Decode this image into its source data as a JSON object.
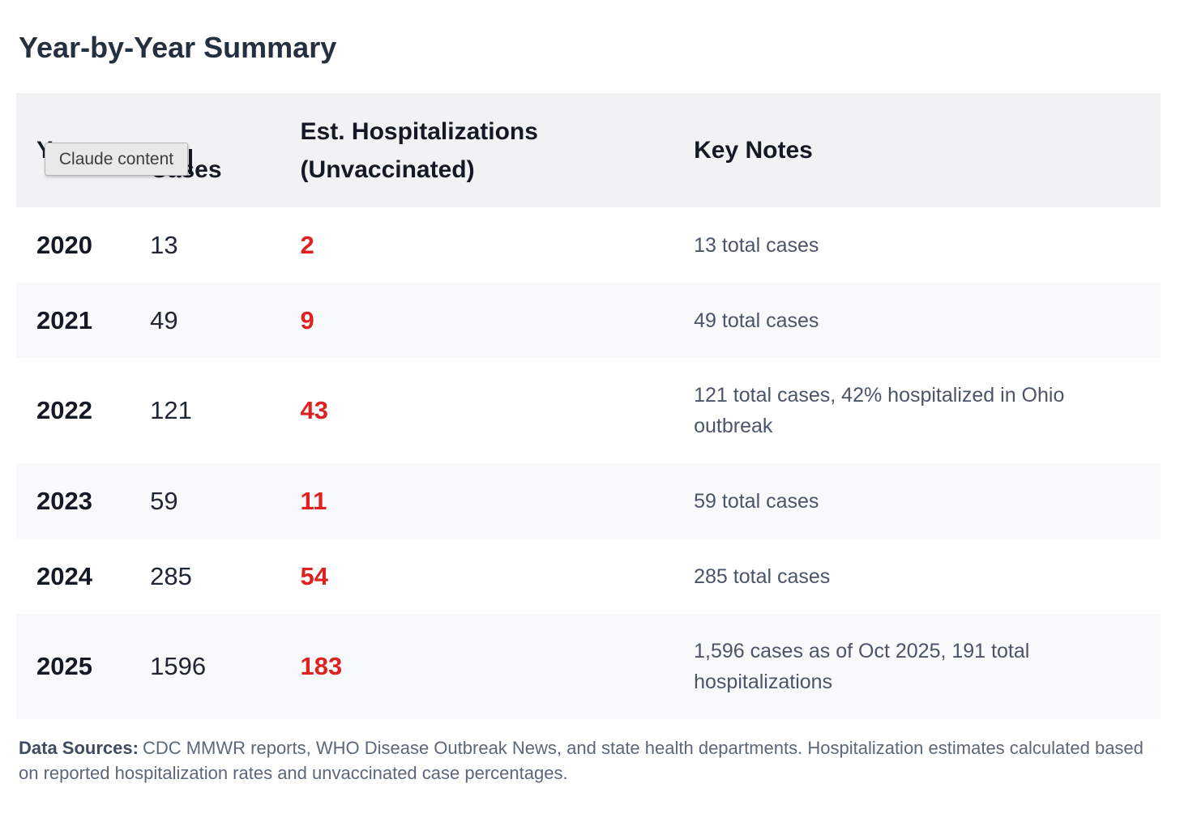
{
  "page": {
    "title": "Year-by-Year Summary"
  },
  "tooltip": {
    "text": "Claude content"
  },
  "table": {
    "headers": {
      "year": "Year",
      "cases_line2": "Cases",
      "hosp_line1": "Est. Hospitalizations",
      "hosp_line2": "(Unvaccinated)",
      "notes": "Key Notes"
    },
    "rows": [
      {
        "year": "2020",
        "cases": "13",
        "hospitalizations": "2",
        "notes": "13 total cases"
      },
      {
        "year": "2021",
        "cases": "49",
        "hospitalizations": "9",
        "notes": "49 total cases"
      },
      {
        "year": "2022",
        "cases": "121",
        "hospitalizations": "43",
        "notes": "121 total cases, 42% hospitalized in Ohio outbreak"
      },
      {
        "year": "2023",
        "cases": "59",
        "hospitalizations": "11",
        "notes": "59 total cases"
      },
      {
        "year": "2024",
        "cases": "285",
        "hospitalizations": "54",
        "notes": "285 total cases"
      },
      {
        "year": "2025",
        "cases": "1596",
        "hospitalizations": "183",
        "notes": "1,596 cases as of Oct 2025, 191 total hospitalizations"
      }
    ]
  },
  "footer": {
    "label": "Data Sources:",
    "text": "CDC MMWR reports, WHO Disease Outbreak News, and state health departments. Hospitalization estimates calculated based on reported hospitalization rates and unvaccinated case percentages."
  },
  "colors": {
    "hospitalizations_red": "#de2121",
    "header_bg": "#f1f2f4",
    "alt_row_bg": "#f8f9fb",
    "notes_text": "#4a5568",
    "title_text": "#242f3f",
    "tooltip_bg": "#e9e9e9"
  }
}
